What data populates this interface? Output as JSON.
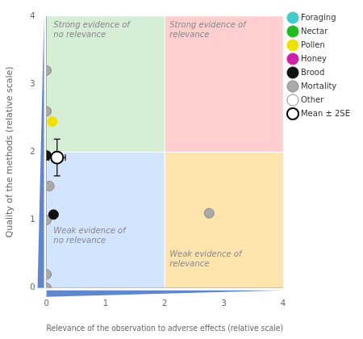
{
  "chart_data": {
    "type": "scatter",
    "xlabel": "Relevance of the observation to adverse effects (relative scale)",
    "ylabel": "Quality of the methods (relative scale)",
    "xlim": [
      0,
      4
    ],
    "ylim": [
      0,
      4
    ],
    "xticks": [
      0,
      1,
      2,
      3,
      4
    ],
    "yticks": [
      0,
      1,
      2,
      3,
      4
    ],
    "grid": false,
    "legend": "upper right",
    "series": [
      {
        "name": "Foraging",
        "color": "#40cccc",
        "x": [],
        "y": []
      },
      {
        "name": "Nectar",
        "color": "#22bb22",
        "x": [],
        "y": []
      },
      {
        "name": "Pollen",
        "color": "#f0e000",
        "x": [
          0.1
        ],
        "y": [
          2.45
        ]
      },
      {
        "name": "Honey",
        "color": "#cc22aa",
        "x": [],
        "y": []
      },
      {
        "name": "Brood",
        "color": "#111111",
        "x": [
          0.0,
          0.12
        ],
        "y": [
          1.95,
          1.08
        ]
      },
      {
        "name": "Mortality",
        "color": "#aaaaaa",
        "x": [
          0.0,
          0.0,
          0.05,
          0.0,
          0.0,
          0.0,
          2.75
        ],
        "y": [
          3.2,
          2.6,
          1.5,
          1.0,
          0.2,
          0.0,
          1.1
        ]
      },
      {
        "name": "Other",
        "color": "#ffffff",
        "x": [],
        "y": []
      },
      {
        "name": "Mean ± 2SE",
        "color": "#ffffff",
        "x": [
          0.18
        ],
        "y": [
          1.92
        ],
        "xerr": [
          0.14
        ],
        "yerr": [
          0.27
        ]
      }
    ],
    "regions": [
      {
        "x": [
          0,
          2
        ],
        "y": [
          2,
          4
        ],
        "color": "#b8e0b8"
      },
      {
        "x": [
          2,
          4
        ],
        "y": [
          2,
          4
        ],
        "color": "#ffadad"
      },
      {
        "x": [
          0,
          2
        ],
        "y": [
          0,
          2
        ],
        "color": "#b3d1ff"
      },
      {
        "x": [
          2,
          4
        ],
        "y": [
          0,
          2
        ],
        "color": "#ffd173"
      }
    ],
    "annotations": [
      {
        "text": "Strong evidence of\nno relevance",
        "x": 0.12,
        "y": 3.92
      },
      {
        "text": "Strong evidence of\nrelevance",
        "x": 2.08,
        "y": 3.92
      },
      {
        "text": "Weak evidence of\nno relevance",
        "x": 0.12,
        "y": 0.9
      },
      {
        "text": "Weak evidence of\nrelevance",
        "x": 2.08,
        "y": 0.55
      }
    ],
    "axis_triangle_color": "#4472c4"
  }
}
